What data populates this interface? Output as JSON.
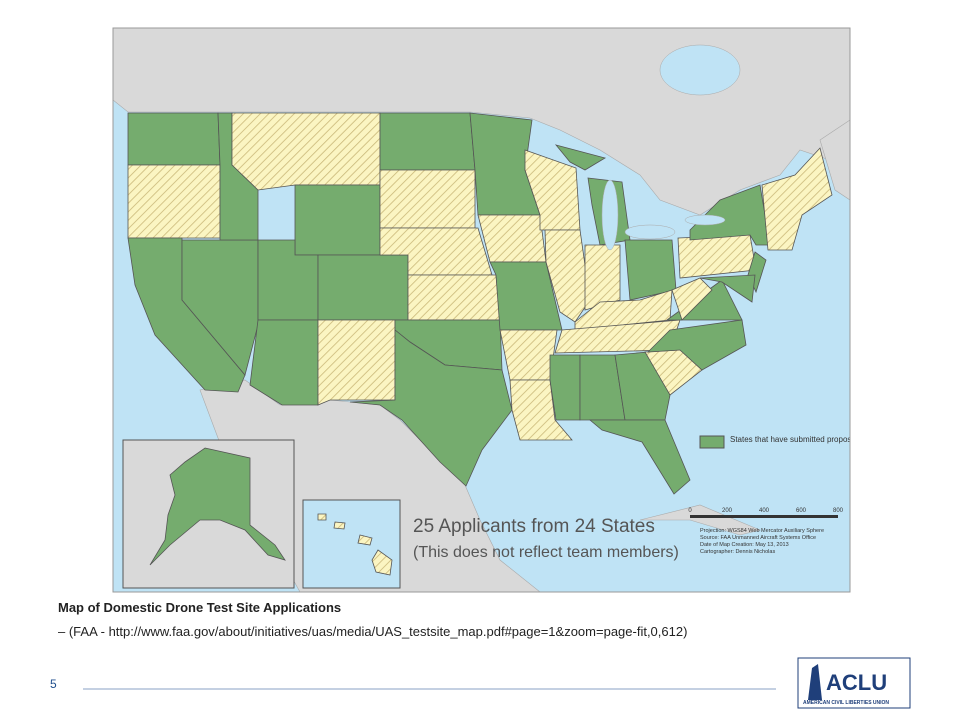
{
  "map": {
    "legend": "States that have submitted proposals",
    "headline": "25 Applicants from 24 States",
    "subhead": "(This does not reflect team members)",
    "scale_labels": [
      "0",
      "200",
      "400",
      "600",
      "800"
    ],
    "notes": [
      "Projection: WGS84 Web Mercator Auxiliary Sphere",
      "Source: FAA Unmanned Aircraft Systems Office",
      "Date of Map Creation: May 13, 2013",
      "Cartographer: Dennis Nicholas"
    ]
  },
  "caption": {
    "title": "Map  of  Domestic  Drone  Test  Site  Applications",
    "source": "– (FAA - http://www.faa.gov/about/initiatives/uas/media/UAS_testsite_map.pdf#page=1&zoom=page-fit,0,612)"
  },
  "page_number": "5",
  "logo": {
    "name": "ACLU",
    "subtitle": "AMERICAN CIVIL LIBERTIES UNION"
  }
}
